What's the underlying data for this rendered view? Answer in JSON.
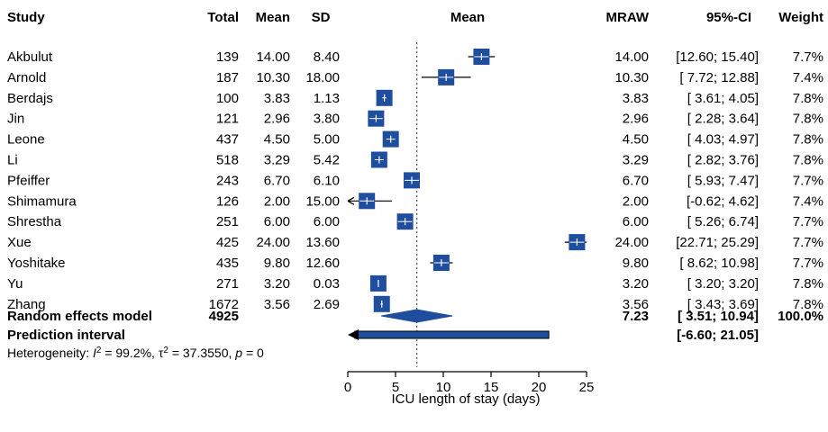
{
  "headers": {
    "study": "Study",
    "total": "Total",
    "mean": "Mean",
    "sd": "SD",
    "plot_mean": "Mean",
    "mraw": "MRAW",
    "ci": "95%-CI",
    "weight": "Weight"
  },
  "summary": {
    "random_label": "Random effects model",
    "random_total": "4925",
    "random_mraw": "7.23",
    "random_ci": "[ 3.51; 10.94]",
    "random_weight": "100.0%",
    "prediction_label": "Prediction interval",
    "prediction_ci": "[-6.60; 21.05]"
  },
  "heterogeneity": {
    "prefix": "Heterogeneity: ",
    "i2_symbol": "I",
    "i2_value": " = 99.2%, ",
    "tau_symbol": "τ",
    "tau_value": " = 37.3550, ",
    "p_symbol": "p",
    "p_value": " = 0"
  },
  "colors": {
    "box": "#1f4e9e",
    "diamond": "#1f4e9e",
    "line": "#000000",
    "ref_line": "#555555"
  },
  "chart_data": {
    "type": "forest",
    "xlabel": "ICU length of stay (days)",
    "xlim": [
      0,
      25
    ],
    "xticks": [
      0,
      5,
      10,
      15,
      20,
      25
    ],
    "reference_line": 7.23,
    "studies": [
      {
        "study": "Akbulut",
        "total": "139",
        "mean": "14.00",
        "sd": "8.40",
        "mraw": 14.0,
        "ci_low": 12.6,
        "ci_high": 15.4,
        "ci_text": "[12.60; 15.40]",
        "weight": "7.7%"
      },
      {
        "study": "Arnold",
        "total": "187",
        "mean": "10.30",
        "sd": "18.00",
        "mraw": 10.3,
        "ci_low": 7.72,
        "ci_high": 12.88,
        "ci_text": "[ 7.72; 12.88]",
        "weight": "7.4%"
      },
      {
        "study": "Berdajs",
        "total": "100",
        "mean": "3.83",
        "sd": "1.13",
        "mraw": 3.83,
        "ci_low": 3.61,
        "ci_high": 4.05,
        "ci_text": "[ 3.61;  4.05]",
        "weight": "7.8%"
      },
      {
        "study": "Jin",
        "total": "121",
        "mean": "2.96",
        "sd": "3.80",
        "mraw": 2.96,
        "ci_low": 2.28,
        "ci_high": 3.64,
        "ci_text": "[ 2.28;  3.64]",
        "weight": "7.8%"
      },
      {
        "study": "Leone",
        "total": "437",
        "mean": "4.50",
        "sd": "5.00",
        "mraw": 4.5,
        "ci_low": 4.03,
        "ci_high": 4.97,
        "ci_text": "[ 4.03;  4.97]",
        "weight": "7.8%"
      },
      {
        "study": "Li",
        "total": "518",
        "mean": "3.29",
        "sd": "5.42",
        "mraw": 3.29,
        "ci_low": 2.82,
        "ci_high": 3.76,
        "ci_text": "[ 2.82;  3.76]",
        "weight": "7.8%"
      },
      {
        "study": "Pfeiffer",
        "total": "243",
        "mean": "6.70",
        "sd": "6.10",
        "mraw": 6.7,
        "ci_low": 5.93,
        "ci_high": 7.47,
        "ci_text": "[ 5.93;  7.47]",
        "weight": "7.7%"
      },
      {
        "study": "Shimamura",
        "total": "126",
        "mean": "2.00",
        "sd": "15.00",
        "mraw": 2.0,
        "ci_low": -0.62,
        "ci_high": 4.62,
        "ci_text": "[-0.62;  4.62]",
        "weight": "7.4%"
      },
      {
        "study": "Shrestha",
        "total": "251",
        "mean": "6.00",
        "sd": "6.00",
        "mraw": 6.0,
        "ci_low": 5.26,
        "ci_high": 6.74,
        "ci_text": "[ 5.26;  6.74]",
        "weight": "7.7%"
      },
      {
        "study": "Xue",
        "total": "425",
        "mean": "24.00",
        "sd": "13.60",
        "mraw": 24.0,
        "ci_low": 22.71,
        "ci_high": 25.29,
        "ci_text": "[22.71; 25.29]",
        "weight": "7.7%"
      },
      {
        "study": "Yoshitake",
        "total": "435",
        "mean": "9.80",
        "sd": "12.60",
        "mraw": 9.8,
        "ci_low": 8.62,
        "ci_high": 10.98,
        "ci_text": "[ 8.62; 10.98]",
        "weight": "7.7%"
      },
      {
        "study": "Yu",
        "total": "271",
        "mean": "3.20",
        "sd": "0.03",
        "mraw": 3.2,
        "ci_low": 3.2,
        "ci_high": 3.2,
        "ci_text": "[ 3.20;  3.20]",
        "weight": "7.8%"
      },
      {
        "study": "Zhang",
        "total": "1672",
        "mean": "3.56",
        "sd": "2.69",
        "mraw": 3.56,
        "ci_low": 3.43,
        "ci_high": 3.69,
        "ci_text": "[ 3.43;  3.69]",
        "weight": "7.8%"
      }
    ],
    "random_effects": {
      "estimate": 7.23,
      "ci_low": 3.51,
      "ci_high": 10.94
    },
    "prediction_interval": {
      "low": -6.6,
      "high": 21.05
    }
  }
}
